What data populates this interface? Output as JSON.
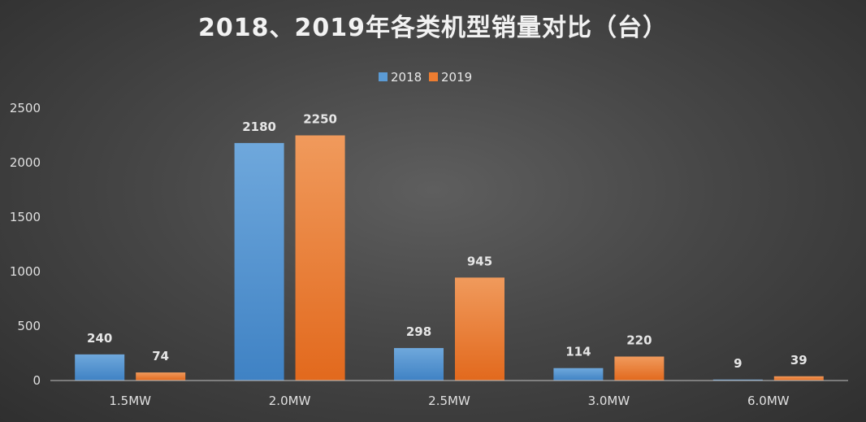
{
  "chart_data": {
    "type": "bar",
    "title": "2018、2019年各类机型销量对比（台）",
    "xlabel": "",
    "ylabel": "",
    "categories": [
      "1.5MW",
      "2.0MW",
      "2.5MW",
      "3.0MW",
      "6.0MW"
    ],
    "series": [
      {
        "name": "2018",
        "values": [
          240,
          2180,
          298,
          114,
          9
        ],
        "color": "#5b9bd5"
      },
      {
        "name": "2019",
        "values": [
          74,
          2250,
          945,
          220,
          39
        ],
        "color": "#ed7d31"
      }
    ],
    "ylim": [
      0,
      2500
    ],
    "yticks": [
      0,
      500,
      1000,
      1500,
      2000,
      2500
    ],
    "legend_position": "top-center",
    "grid": false
  }
}
